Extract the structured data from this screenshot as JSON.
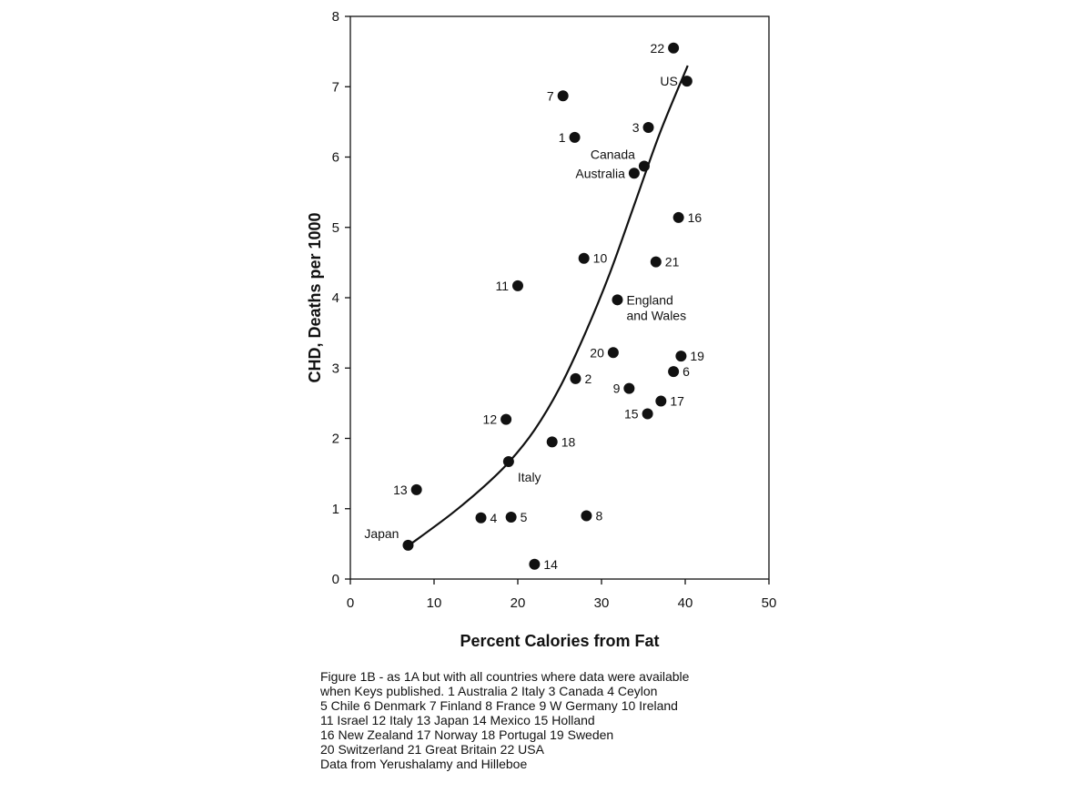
{
  "chart_data": {
    "type": "scatter",
    "xlabel": "Percent Calories from Fat",
    "ylabel": "CHD, Deaths per 1000",
    "xlim": [
      0,
      50
    ],
    "ylim": [
      0,
      8
    ],
    "x_ticks": [
      "0",
      "10",
      "20",
      "30",
      "40",
      "50"
    ],
    "y_ticks": [
      "0",
      "1",
      "2",
      "3",
      "4",
      "5",
      "6",
      "7",
      "8"
    ],
    "grid": false,
    "legend": "none",
    "points": [
      {
        "label": "22",
        "x": 38.6,
        "y": 7.55,
        "label_pos": "left"
      },
      {
        "label": "US",
        "x": 40.2,
        "y": 7.08,
        "label_pos": "left"
      },
      {
        "label": "7",
        "x": 25.4,
        "y": 6.87,
        "label_pos": "left"
      },
      {
        "label": "3",
        "x": 35.6,
        "y": 6.42,
        "label_pos": "left"
      },
      {
        "label": "1",
        "x": 26.8,
        "y": 6.28,
        "label_pos": "left"
      },
      {
        "label": "Canada",
        "x": 35.1,
        "y": 5.87,
        "label_pos": "above-left"
      },
      {
        "label": "Australia",
        "x": 33.9,
        "y": 5.77,
        "label_pos": "left"
      },
      {
        "label": "16",
        "x": 39.2,
        "y": 5.14,
        "label_pos": "right"
      },
      {
        "label": "10",
        "x": 27.9,
        "y": 4.56,
        "label_pos": "right"
      },
      {
        "label": "21",
        "x": 36.5,
        "y": 4.51,
        "label_pos": "right"
      },
      {
        "label": "11",
        "x": 20.0,
        "y": 4.17,
        "label_pos": "left"
      },
      {
        "label": "England",
        "x": 31.9,
        "y": 3.97,
        "label_pos": "right"
      },
      {
        "label": "and Wales",
        "x": 31.9,
        "y": 3.97,
        "label_pos": "below-right"
      },
      {
        "label": "20",
        "x": 31.4,
        "y": 3.22,
        "label_pos": "left"
      },
      {
        "label": "19",
        "x": 39.5,
        "y": 3.17,
        "label_pos": "right"
      },
      {
        "label": "6",
        "x": 38.6,
        "y": 2.95,
        "label_pos": "right"
      },
      {
        "label": "2",
        "x": 26.9,
        "y": 2.85,
        "label_pos": "right"
      },
      {
        "label": "9",
        "x": 33.3,
        "y": 2.71,
        "label_pos": "left"
      },
      {
        "label": "17",
        "x": 37.1,
        "y": 2.53,
        "label_pos": "right"
      },
      {
        "label": "15",
        "x": 35.5,
        "y": 2.35,
        "label_pos": "left"
      },
      {
        "label": "12",
        "x": 18.6,
        "y": 2.27,
        "label_pos": "left"
      },
      {
        "label": "18",
        "x": 24.1,
        "y": 1.95,
        "label_pos": "right"
      },
      {
        "label": "Italy",
        "x": 18.9,
        "y": 1.67,
        "label_pos": "below-right"
      },
      {
        "label": "13",
        "x": 7.9,
        "y": 1.27,
        "label_pos": "left"
      },
      {
        "label": "4",
        "x": 15.6,
        "y": 0.87,
        "label_pos": "right"
      },
      {
        "label": "5",
        "x": 19.2,
        "y": 0.88,
        "label_pos": "right"
      },
      {
        "label": "8",
        "x": 28.2,
        "y": 0.9,
        "label_pos": "right"
      },
      {
        "label": "Japan",
        "x": 6.9,
        "y": 0.48,
        "label_pos": "above-left"
      },
      {
        "label": "14",
        "x": 22.0,
        "y": 0.21,
        "label_pos": "right"
      }
    ],
    "trend_curve": {
      "type": "polynomial-fit",
      "x_range": [
        7,
        40.3
      ],
      "points": [
        [
          7,
          0.48
        ],
        [
          12,
          0.92
        ],
        [
          16,
          1.32
        ],
        [
          19,
          1.67
        ],
        [
          22,
          2.12
        ],
        [
          25,
          2.72
        ],
        [
          28,
          3.48
        ],
        [
          31,
          4.35
        ],
        [
          34,
          5.35
        ],
        [
          37,
          6.35
        ],
        [
          40.3,
          7.3
        ]
      ]
    },
    "colors": {
      "marker": "#111111",
      "line": "#111111",
      "background": "#ffffff"
    }
  },
  "caption": {
    "lines": [
      "Figure 1B - as 1A but with all countries where data were available",
      "when Keys published. 1 Australia 2 Italy 3 Canada 4 Ceylon",
      "5 Chile 6 Denmark 7 Finland 8 France 9 W Germany 10 Ireland",
      "11 Israel 12 Italy 13 Japan 14 Mexico 15 Holland",
      "16 New Zealand 17 Norway 18 Portugal 19 Sweden",
      "20 Switzerland 21 Great Britain 22 USA",
      "Data from Yerushalamy and Hilleboe"
    ]
  }
}
